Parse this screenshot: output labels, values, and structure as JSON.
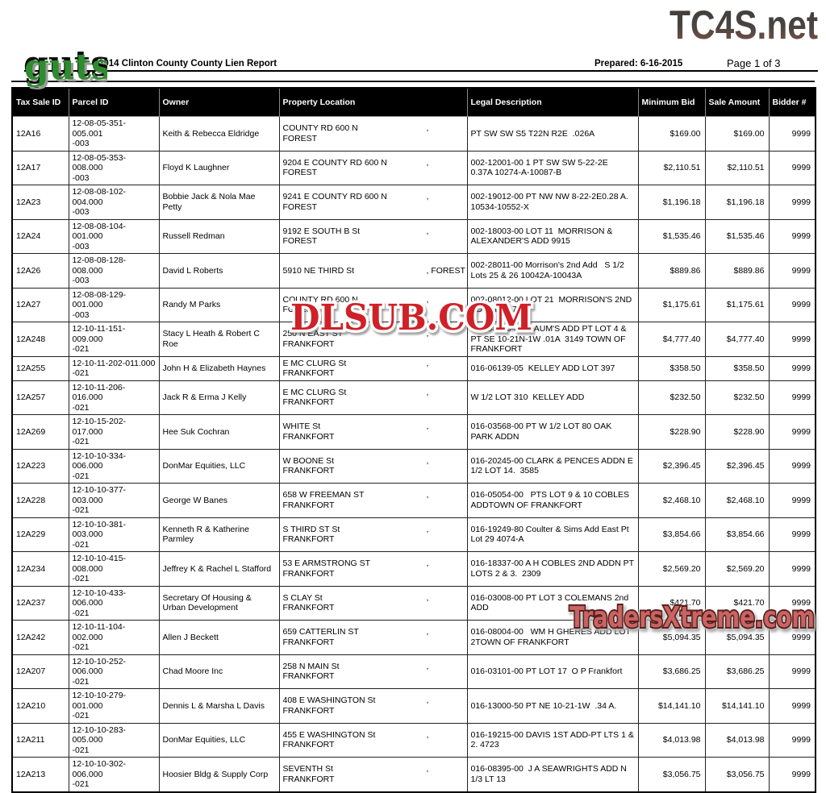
{
  "page": {
    "brand_logo": "guts",
    "top_right_logo": "TC4S.net",
    "report_title": "2014 Clinton County County Lien Report",
    "prepared": "Prepared: 6-16-2015",
    "page_label": "Page 1 of 3",
    "watermark_center": "DLSUB.COM",
    "watermark_bottom": "TradersXtreme.com",
    "colors": {
      "header_bar": "#000000",
      "brand_green": "#2e8b2e",
      "watermark_red": "#cf2127",
      "footer_salmon": "#c96463",
      "footer_outline": "#58201e",
      "tc4s_gradient_top": "#3d3d3d",
      "tc4s_gradient_bottom": "#8a544a"
    },
    "location_separator": ","
  },
  "table": {
    "columns": [
      "Tax Sale ID",
      "Parcel ID",
      "Owner",
      "Property Location",
      "Legal Description",
      "Minimum Bid",
      "Sale Amount",
      "Bidder #"
    ],
    "rows": [
      {
        "id": "12A16",
        "parcel": "12-08-05-351-005.001\n-003",
        "owner": "Keith & Rebecca Eldridge",
        "street": "COUNTY RD 600 N",
        "city": "FOREST",
        "inline_city": "",
        "legal": "PT SW SW S5 T22N R2E  .026A",
        "min": "$169.00",
        "sale": "$169.00",
        "bidder": "9999"
      },
      {
        "id": "12A17",
        "parcel": "12-08-05-353-008.000\n-003",
        "owner": "Floyd K Laughner",
        "street": "9204 E COUNTY RD 600 N",
        "city": "FOREST",
        "inline_city": "",
        "legal": "002-12001-00 1 PT SW SW 5-22-2E  0.37A 10274-A-10087-B",
        "min": "$2,110.51",
        "sale": "$2,110.51",
        "bidder": "9999"
      },
      {
        "id": "12A23",
        "parcel": "12-08-08-102-004.000\n-003",
        "owner": "Bobbie Jack & Nola Mae Petty",
        "street": "9241 E COUNTY RD 600 N",
        "city": "FOREST",
        "inline_city": "",
        "legal": "002-19012-00 PT NW NW 8-22-2E0.28 A. 10534-10552-X",
        "min": "$1,196.18",
        "sale": "$1,196.18",
        "bidder": "9999"
      },
      {
        "id": "12A24",
        "parcel": "12-08-08-104-001.000\n-003",
        "owner": "Russell Redman",
        "street": "9192 E SOUTH B St",
        "city": "FOREST",
        "inline_city": "",
        "legal": "002-18003-00 LOT 11  MORRISON & ALEXANDER'S ADD 9915",
        "min": "$1,535.46",
        "sale": "$1,535.46",
        "bidder": "9999"
      },
      {
        "id": "12A26",
        "parcel": "12-08-08-128-008.000\n-003",
        "owner": "David L Roberts",
        "street": "5910 NE THIRD St",
        "city": "",
        "inline_city": "FOREST",
        "legal": "002-28011-00 Morrison's 2nd Add   S 1/2 Lots 25 & 26 10042A-10043A",
        "min": "$889.86",
        "sale": "$889.86",
        "bidder": "9999"
      },
      {
        "id": "12A27",
        "parcel": "12-08-08-129-001.000\n-003",
        "owner": "Randy M Parks",
        "street": "COUNTY RD 600 N",
        "city": "FOREST",
        "inline_city": "",
        "legal": "002-08012-00 LOT 21  MORRISON'S 2ND ADD. 10417",
        "min": "$1,175.61",
        "sale": "$1,175.61",
        "bidder": "9999"
      },
      {
        "id": "12A248",
        "parcel": "12-10-11-151-009.000\n-021",
        "owner": "Stacy L Heath & Robert C Roe",
        "street": "250 N EAST ST",
        "city": "FRANKFORT",
        "inline_city": "",
        "legal": "016-08263-00  BAUM'S ADD PT LOT 4 & PT SE 10-21N-1W .01A  3149 TOWN OF FRANKFORT",
        "min": "$4,777.40",
        "sale": "$4,777.40",
        "bidder": "9999"
      },
      {
        "id": "12A255",
        "parcel": "12-10-11-202-011.000\n-021",
        "owner": "John H & Elizabeth Haynes",
        "street": "E MC CLURG St",
        "city": "FRANKFORT",
        "inline_city": "",
        "legal": "016-06139-05  KELLEY ADD LOT 397",
        "min": "$358.50",
        "sale": "$358.50",
        "bidder": "9999"
      },
      {
        "id": "12A257",
        "parcel": "12-10-11-206-016.000\n-021",
        "owner": "Jack R & Erma J Kelly",
        "street": "E MC CLURG St",
        "city": "FRANKFORT",
        "inline_city": "",
        "legal": "W 1/2 LOT 310  KELLEY ADD",
        "min": "$232.50",
        "sale": "$232.50",
        "bidder": "9999"
      },
      {
        "id": "12A269",
        "parcel": "12-10-15-202-017.000\n-021",
        "owner": "Hee Suk Cochran",
        "street": "WHITE St",
        "city": "FRANKFORT",
        "inline_city": "",
        "legal": "016-03568-00 PT W 1/2 LOT 80 OAK PARK ADDN",
        "min": "$228.90",
        "sale": "$228.90",
        "bidder": "9999"
      },
      {
        "id": "12A223",
        "parcel": "12-10-10-334-006.000\n-021",
        "owner": "DonMar Equities, LLC",
        "street": "W BOONE St",
        "city": "FRANKFORT",
        "inline_city": "",
        "legal": "016-20245-00 CLARK & PENCES ADDN E 1/2 LOT 14.  3585",
        "min": "$2,396.45",
        "sale": "$2,396.45",
        "bidder": "9999"
      },
      {
        "id": "12A228",
        "parcel": "12-10-10-377-003.000\n-021",
        "owner": "George W Banes",
        "street": "658 W FREEMAN ST",
        "city": "FRANKFORT",
        "inline_city": "",
        "legal": "016-05054-00   PTS LOT 9 & 10 COBLES ADDTOWN OF FRANKFORT",
        "min": "$2,468.10",
        "sale": "$2,468.10",
        "bidder": "9999"
      },
      {
        "id": "12A229",
        "parcel": "12-10-10-381-003.000\n-021",
        "owner": "Kenneth R & Katherine Parmley",
        "street": "S THIRD ST St",
        "city": "FRANKFORT",
        "inline_city": "",
        "legal": "016-19249-80 Coulter & Sims Add East Pt Lot 29 4074-A",
        "min": "$3,854.66",
        "sale": "$3,854.66",
        "bidder": "9999"
      },
      {
        "id": "12A234",
        "parcel": "12-10-10-415-008.000\n-021",
        "owner": "Jeffrey K & Rachel L Stafford",
        "street": "53 E ARMSTRONG ST",
        "city": "FRANKFORT",
        "inline_city": "",
        "legal": "016-18337-00 A H COBLES 2ND ADDN PT LOTS 2 & 3.  2309",
        "min": "$2,569.20",
        "sale": "$2,569.20",
        "bidder": "9999"
      },
      {
        "id": "12A237",
        "parcel": "12-10-10-433-006.000\n-021",
        "owner": "Secretary Of Housing & Urban Development",
        "street": "S CLAY St",
        "city": "FRANKFORT",
        "inline_city": "",
        "legal": "016-03008-00 PT LOT 3 COLEMANS 2nd ADD",
        "min": "$421.70",
        "sale": "$421.70",
        "bidder": "9999"
      },
      {
        "id": "12A242",
        "parcel": "12-10-11-104-002.000\n-021",
        "owner": "Allen J Beckett",
        "street": "659  CATTERLIN ST",
        "city": "FRANKFORT",
        "inline_city": "",
        "legal": "016-08004-00   WM H GHERES ADD LOT 2TOWN OF FRANKFORT",
        "min": "$5,094.35",
        "sale": "$5,094.35",
        "bidder": "9999"
      },
      {
        "id": "12A207",
        "parcel": "12-10-10-252-006.000\n-021",
        "owner": "Chad Moore Inc",
        "street": "258 N MAIN St",
        "city": "FRANKFORT",
        "inline_city": "",
        "legal": "016-03101-00 PT LOT 17  O P Frankfort",
        "min": "$3,686.25",
        "sale": "$3,686.25",
        "bidder": "9999"
      },
      {
        "id": "12A210",
        "parcel": "12-10-10-279-001.000\n-021",
        "owner": "Dennis L & Marsha L Davis",
        "street": "408 E WASHINGTON St",
        "city": "FRANKFORT",
        "inline_city": "",
        "legal": "016-13000-50 PT NE 10-21-1W  .34 A.",
        "min": "$14,141.10",
        "sale": "$14,141.10",
        "bidder": "9999"
      },
      {
        "id": "12A211",
        "parcel": "12-10-10-283-005.000\n-021",
        "owner": "DonMar Equities, LLC",
        "street": "455 E WASHINGTON St",
        "city": "FRANKFORT",
        "inline_city": "",
        "legal": "016-19215-00 DAVIS 1ST ADD-PT LTS 1 & 2. 4723",
        "min": "$4,013.98",
        "sale": "$4,013.98",
        "bidder": "9999"
      },
      {
        "id": "12A213",
        "parcel": "12-10-10-302-006.000\n-021",
        "owner": "Hoosier Bldg & Supply Corp",
        "street": "SEVENTH St",
        "city": "FRANKFORT",
        "inline_city": "",
        "legal": "016-08395-00  J A SEAWRIGHTS ADD N 1/3 LT 13",
        "min": "$3,056.75",
        "sale": "$3,056.75",
        "bidder": "9999"
      }
    ]
  }
}
